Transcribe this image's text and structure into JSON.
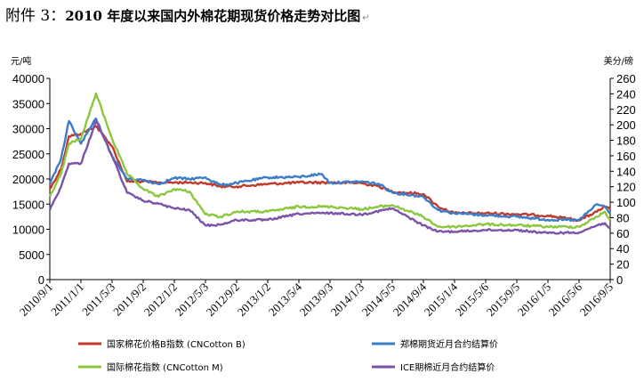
{
  "title": {
    "prefix": "附件 3：",
    "text": "2010 年度以来国内外棉花期现货价格走势对比图",
    "mark": "↵"
  },
  "chart_data": {
    "type": "line",
    "title": "2010 年度以来国内外棉花期现货价格走势对比图",
    "left_axis": {
      "unit": "元/吨",
      "ylim": [
        0,
        40000
      ],
      "ticks": [
        "0",
        "5000",
        "10000",
        "15000",
        "20000",
        "25000",
        "30000",
        "35000",
        "40000"
      ]
    },
    "right_axis": {
      "unit": "美分/磅",
      "ylim": [
        0,
        260
      ],
      "ticks": [
        "0",
        "20",
        "40",
        "60",
        "80",
        "100",
        "120",
        "140",
        "160",
        "180",
        "200",
        "220",
        "240",
        "260"
      ]
    },
    "x_ticks": [
      "2010/9/1",
      "2011/1/1",
      "2011/5/3",
      "2011/9/2",
      "2012/1/2",
      "2012/5/3",
      "2012/9/2",
      "2013/1/2",
      "2013/5/4",
      "2013/9/3",
      "2014/1/3",
      "2014/5/5",
      "2014/9/4",
      "2015/1/4",
      "2015/5/6",
      "2015/9/5",
      "2016/1/5",
      "2016/5/6",
      "2016/9/5"
    ],
    "grid": false,
    "legend_position": "bottom",
    "series": [
      {
        "name": "国家棉花价格B指数 (CNCotton  B)",
        "axis": "left",
        "color": "#c0392b",
        "x": [
          "2010/9/1",
          "2010/10/15",
          "2010/11/15",
          "2011/1/1",
          "2011/3/1",
          "2011/5/3",
          "2011/7/1",
          "2011/9/2",
          "2011/11/1",
          "2012/1/2",
          "2012/3/1",
          "2012/5/3",
          "2012/7/1",
          "2012/9/2",
          "2013/1/2",
          "2013/5/4",
          "2013/9/3",
          "2014/1/3",
          "2014/3/15",
          "2014/5/5",
          "2014/9/4",
          "2014/11/1",
          "2015/1/4",
          "2015/5/6",
          "2015/9/5",
          "2016/1/5",
          "2016/5/6",
          "2016/7/15",
          "2016/8/15",
          "2016/9/5"
        ],
        "values": [
          18000,
          22000,
          28500,
          29000,
          30500,
          26500,
          19500,
          19500,
          19300,
          19300,
          19300,
          19200,
          18500,
          18500,
          19000,
          19300,
          19300,
          19200,
          18500,
          17500,
          17000,
          14500,
          13200,
          13200,
          13000,
          12700,
          11800,
          13500,
          14500,
          14000
        ]
      },
      {
        "name": "郑棉期货近月合约结算价",
        "axis": "left",
        "color": "#3d7cc9",
        "x": [
          "2010/9/1",
          "2010/10/15",
          "2010/11/15",
          "2011/1/1",
          "2011/3/1",
          "2011/5/3",
          "2011/7/1",
          "2011/9/2",
          "2011/11/1",
          "2012/1/2",
          "2012/3/1",
          "2012/5/3",
          "2012/7/1",
          "2012/9/2",
          "2013/1/2",
          "2013/5/4",
          "2013/8/1",
          "2013/9/3",
          "2014/1/3",
          "2014/3/15",
          "2014/5/5",
          "2014/9/4",
          "2014/11/1",
          "2015/1/4",
          "2015/5/6",
          "2015/9/5",
          "2016/1/5",
          "2016/5/6",
          "2016/7/15",
          "2016/8/15",
          "2016/9/5"
        ],
        "values": [
          19000,
          24000,
          31500,
          27000,
          32000,
          24500,
          20000,
          19800,
          19000,
          20200,
          20000,
          20300,
          18800,
          19200,
          20300,
          20400,
          21000,
          19200,
          19500,
          19000,
          17300,
          16500,
          13800,
          13200,
          12800,
          12500,
          11900,
          11800,
          15000,
          14500,
          13200
        ]
      },
      {
        "name": "国际棉花指数 (CNCotton  M)",
        "axis": "left",
        "color": "#8dc63f",
        "x": [
          "2010/9/1",
          "2010/10/15",
          "2010/11/15",
          "2011/1/1",
          "2011/3/1",
          "2011/5/3",
          "2011/7/1",
          "2011/9/2",
          "2011/11/1",
          "2012/1/2",
          "2012/3/1",
          "2012/5/3",
          "2012/7/1",
          "2012/9/2",
          "2013/1/2",
          "2013/5/4",
          "2013/9/3",
          "2014/1/3",
          "2014/5/5",
          "2014/9/4",
          "2014/11/1",
          "2015/1/4",
          "2015/5/6",
          "2015/9/5",
          "2016/1/5",
          "2016/5/6",
          "2016/7/15",
          "2016/8/15",
          "2016/9/5"
        ],
        "values": [
          16500,
          21000,
          27000,
          28000,
          37000,
          28000,
          21000,
          18000,
          16500,
          18000,
          17500,
          13000,
          12500,
          13500,
          13500,
          14500,
          14500,
          14000,
          14800,
          12500,
          10500,
          10500,
          11000,
          10800,
          10500,
          10500,
          12500,
          13500,
          11800
        ]
      },
      {
        "name": "ICE期棉近月合约结算价",
        "axis": "right",
        "color": "#7b54a8",
        "x": [
          "2010/9/1",
          "2010/10/15",
          "2010/11/15",
          "2011/1/1",
          "2011/3/1",
          "2011/5/3",
          "2011/7/1",
          "2011/9/2",
          "2011/11/1",
          "2012/1/2",
          "2012/3/1",
          "2012/5/3",
          "2012/7/1",
          "2012/9/2",
          "2013/1/2",
          "2013/5/4",
          "2013/9/3",
          "2014/1/3",
          "2014/5/5",
          "2014/9/4",
          "2014/11/1",
          "2015/1/4",
          "2015/5/6",
          "2015/9/5",
          "2016/1/5",
          "2016/5/6",
          "2016/7/15",
          "2016/8/15",
          "2016/9/5"
        ],
        "values": [
          90,
          120,
          150,
          150,
          205,
          160,
          112,
          102,
          98,
          92,
          90,
          70,
          71,
          77,
          77,
          85,
          86,
          84,
          92,
          70,
          62,
          62,
          64,
          64,
          60,
          61,
          70,
          73,
          66
        ]
      }
    ]
  }
}
